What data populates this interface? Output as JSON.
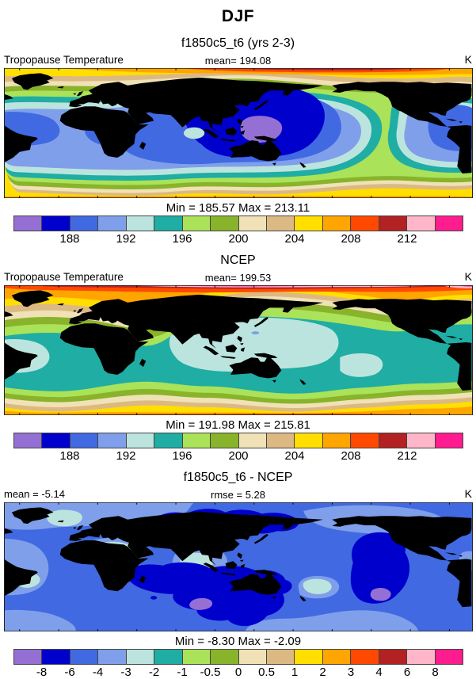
{
  "page": {
    "season_title": "DJF",
    "case_title": "f1850c5_t6 (yrs 2-3)"
  },
  "panels": [
    {
      "variable_label": "Tropopause Temperature",
      "mean_label": "mean= 194.08",
      "units": "K",
      "minmax_label": "Min = 185.57 Max = 213.11"
    },
    {
      "section_title": "NCEP",
      "variable_label": "Tropopause Temperature",
      "mean_label": "mean= 199.53",
      "units": "K",
      "minmax_label": "Min = 191.98 Max = 215.81"
    },
    {
      "section_title": "f1850c5_t6 - NCEP",
      "mean_label": "mean =  -5.14",
      "rmse_label": "rmse =  5.28",
      "units": "K",
      "minmax_label": "Min =  -8.30 Max =  -2.09"
    }
  ],
  "palette": [
    "#9470D4",
    "#0000CD",
    "#4169E1",
    "#7F9FEA",
    "#BCE4DE",
    "#1FADA4",
    "#AAE25A",
    "#89B32B",
    "#F0E2B6",
    "#DCB983",
    "#FFDE00",
    "#FFA500",
    "#FF4900",
    "#B22222",
    "#FFB6C8",
    "#FF1C8E"
  ],
  "colorbars": {
    "temp": {
      "tick_positions": [
        2,
        4,
        6,
        8,
        10,
        12,
        14
      ],
      "tick_labels": [
        "188",
        "192",
        "196",
        "200",
        "204",
        "208",
        "212"
      ]
    },
    "diff": {
      "tick_positions": [
        1,
        2,
        3,
        4,
        5,
        6,
        7,
        8,
        9,
        10,
        11,
        12,
        13,
        14,
        15
      ],
      "tick_labels": [
        "-8",
        "-6",
        "-4",
        "-3",
        "-2",
        "-1",
        "-0.5",
        "0",
        "0.5",
        "1",
        "2",
        "3",
        "4",
        "6",
        "8"
      ]
    }
  },
  "chart_data": [
    {
      "type": "heatmap",
      "subtype": "filled-contour-world-map",
      "title": "f1850c5_t6 (yrs 2-3)",
      "variable": "Tropopause Temperature",
      "season": "DJF",
      "units": "K",
      "mean": 194.08,
      "min": 185.57,
      "max": 213.11,
      "contour_levels": [
        186,
        188,
        190,
        192,
        194,
        196,
        198,
        200,
        202,
        204,
        206,
        208,
        210,
        212,
        214
      ],
      "labeled_ticks": [
        188,
        192,
        196,
        200,
        204,
        208,
        212
      ],
      "projection": "equirectangular, centered near 120E",
      "pattern": "warm (orange/red, ~204-212 K) at both poles, cold blue band (~186-192 K) in tropics, coldest pool (<186 K, purple) over tropical west Pacific"
    },
    {
      "type": "heatmap",
      "subtype": "filled-contour-world-map",
      "title": "NCEP",
      "variable": "Tropopause Temperature",
      "season": "DJF",
      "units": "K",
      "mean": 199.53,
      "min": 191.98,
      "max": 215.81,
      "contour_levels": [
        186,
        188,
        190,
        192,
        194,
        196,
        198,
        200,
        202,
        204,
        206,
        208,
        210,
        212,
        214
      ],
      "labeled_ticks": [
        188,
        192,
        196,
        200,
        204,
        208,
        212
      ],
      "projection": "equirectangular, centered near 120E",
      "pattern": "pink/magenta (>212 K) at north-pole edge, red/orange at both poles, teal-green tropics (~194-198 K) with pale-cyan pools (~192-194 K) over oceans"
    },
    {
      "type": "heatmap",
      "subtype": "filled-contour-difference-map",
      "title": "f1850c5_t6 - NCEP",
      "variable": "Tropopause Temperature difference",
      "season": "DJF",
      "units": "K",
      "mean": -5.14,
      "rmse": 5.28,
      "min": -8.3,
      "max": -2.09,
      "contour_levels": [
        -8,
        -6,
        -4,
        -3,
        -2,
        -1,
        -0.5,
        0,
        0.5,
        1,
        2,
        3,
        4,
        6,
        8
      ],
      "labeled_ticks": [
        -8,
        -6,
        -4,
        -3,
        -2,
        -1,
        -0.5,
        0,
        0.5,
        1,
        2,
        3,
        4,
        6,
        8
      ],
      "projection": "equirectangular, centered near 120E",
      "pattern": "negative everywhere: mostly -6 to -4 K (royal blue), -8 to -6 K pools (dark blue) over Asia, Indian Ocean/Australia and east Pacific with <-8 K purple cores, -3 to -2 K pale spots over N Africa, Atlantic, Indonesia and S Pacific"
    }
  ]
}
